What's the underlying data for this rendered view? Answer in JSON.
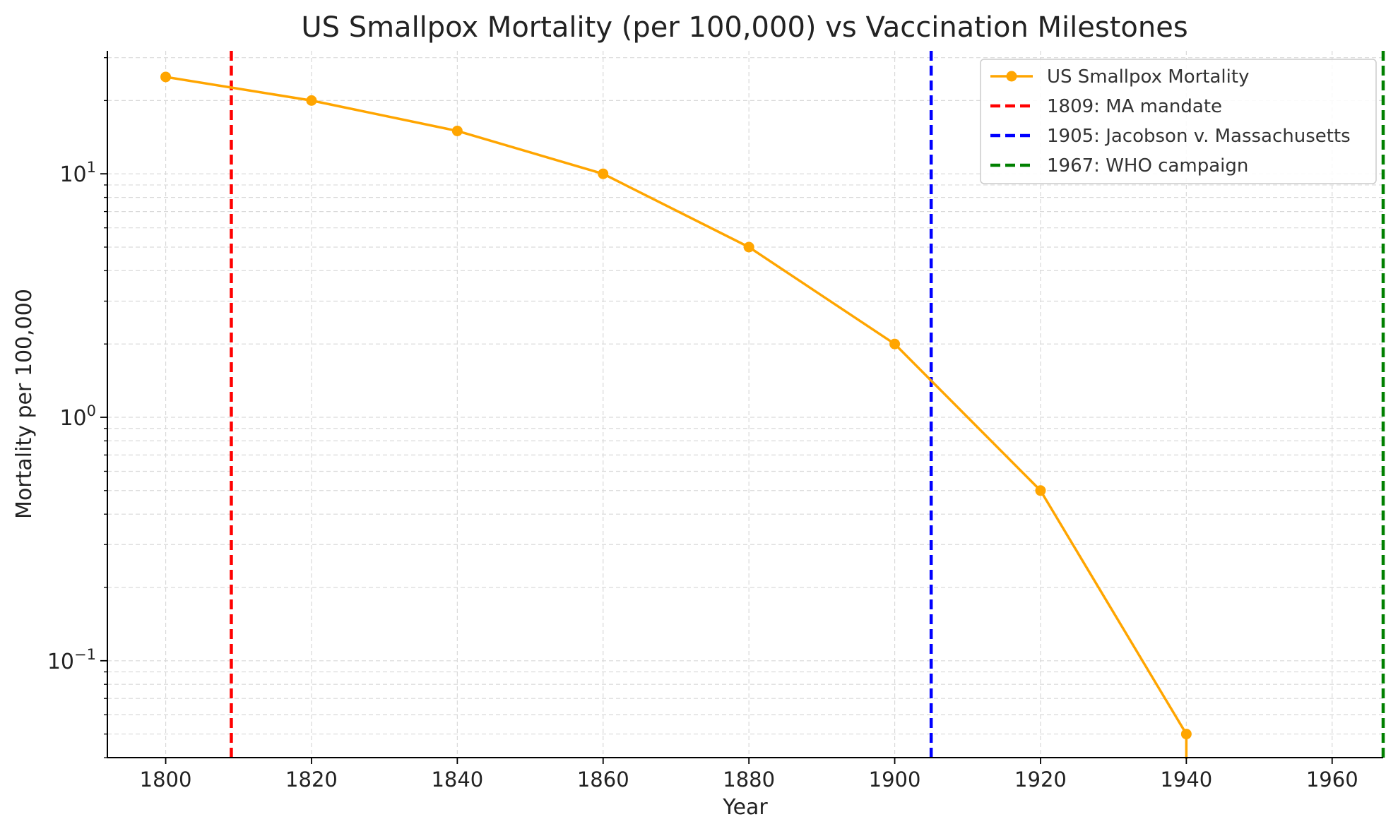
{
  "chart_data": {
    "type": "line",
    "title": "US Smallpox Mortality (per 100,000) vs Vaccination Milestones",
    "xlabel": "Year",
    "ylabel": "Mortality per 100,000",
    "yscale": "log",
    "xlim": [
      1792,
      1967
    ],
    "ylim": [
      0.04,
      32
    ],
    "grid": true,
    "legend_position": "top-right",
    "x_ticks": [
      1800,
      1820,
      1840,
      1860,
      1880,
      1900,
      1920,
      1940,
      1960
    ],
    "x_tick_labels": [
      "1800",
      "1820",
      "1840",
      "1860",
      "1880",
      "1900",
      "1920",
      "1940",
      "1960"
    ],
    "y_ticks": [
      0.1,
      1,
      10
    ],
    "y_tick_labels": [
      {
        "base": "10",
        "exp": "−1"
      },
      {
        "base": "10",
        "exp": "0"
      },
      {
        "base": "10",
        "exp": "1"
      }
    ],
    "series": [
      {
        "name": "US Smallpox Mortality",
        "color": "#FFA500",
        "x": [
          1800,
          1820,
          1840,
          1860,
          1880,
          1900,
          1920,
          1940
        ],
        "values": [
          25,
          20,
          15,
          10,
          5,
          2,
          0.5,
          0.05
        ]
      }
    ],
    "tail_to_axis": true,
    "vlines": [
      {
        "x": 1809,
        "label": "1809: MA mandate",
        "color": "#FF0000"
      },
      {
        "x": 1905,
        "label": "1905: Jacobson v. Massachusetts",
        "color": "#0000FF"
      },
      {
        "x": 1967,
        "label": "1967: WHO campaign",
        "color": "#008000"
      }
    ]
  }
}
